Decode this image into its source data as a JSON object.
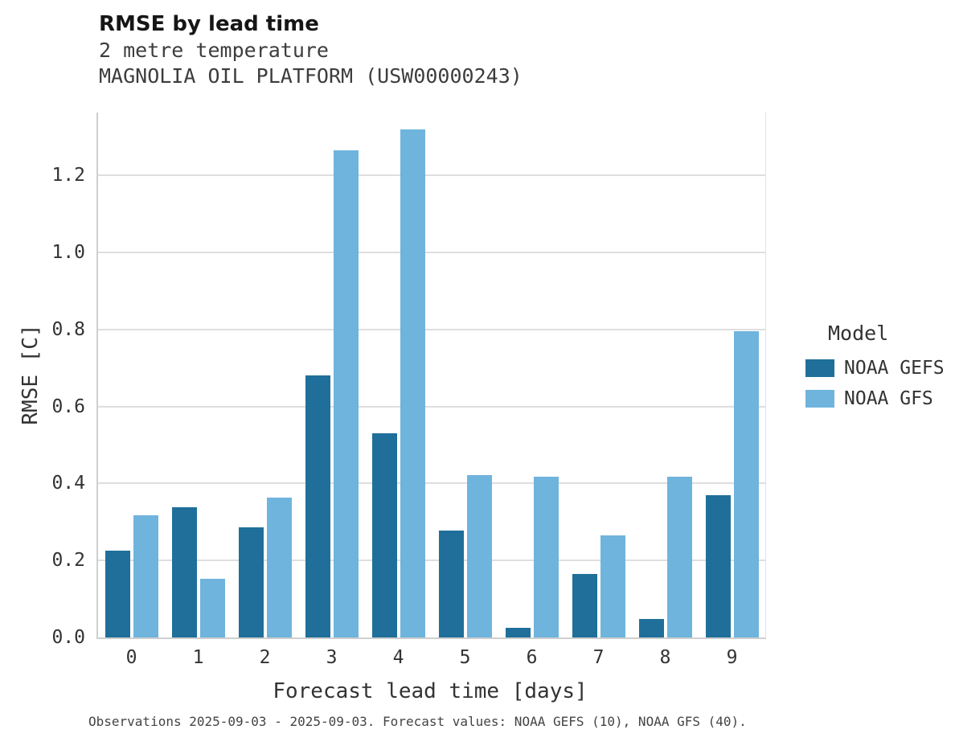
{
  "header": {
    "title": "RMSE by lead time",
    "subtitle1": "2 metre temperature",
    "subtitle2": "MAGNOLIA OIL PLATFORM (USW00000243)"
  },
  "legend": {
    "title": "Model",
    "items": [
      {
        "label": "NOAA GEFS",
        "color": "#1f6f9a"
      },
      {
        "label": "NOAA GFS",
        "color": "#6fb4dd"
      }
    ]
  },
  "caption": "Observations 2025-09-03 - 2025-09-03. Forecast values: NOAA GEFS (10), NOAA GFS (40).",
  "chart_data": {
    "type": "bar",
    "title": "RMSE by lead time",
    "subtitle": "2 metre temperature — MAGNOLIA OIL PLATFORM (USW00000243)",
    "xlabel": "Forecast lead time [days]",
    "ylabel": "RMSE [C]",
    "categories": [
      "0",
      "1",
      "2",
      "3",
      "4",
      "5",
      "6",
      "7",
      "8",
      "9"
    ],
    "series": [
      {
        "name": "NOAA GEFS",
        "color": "#1f6f9a",
        "values": [
          0.225,
          0.338,
          0.285,
          0.68,
          0.53,
          0.277,
          0.025,
          0.165,
          0.048,
          0.37
        ]
      },
      {
        "name": "NOAA GFS",
        "color": "#6fb4dd",
        "values": [
          0.317,
          0.152,
          0.363,
          1.265,
          1.32,
          0.422,
          0.417,
          0.265,
          0.417,
          0.795
        ]
      }
    ],
    "ylim": [
      0,
      1.363
    ],
    "yticks": [
      0.0,
      0.2,
      0.4,
      0.6,
      0.8,
      1.0,
      1.2
    ],
    "grid": true,
    "legend_title": "Model",
    "legend_position": "right"
  }
}
